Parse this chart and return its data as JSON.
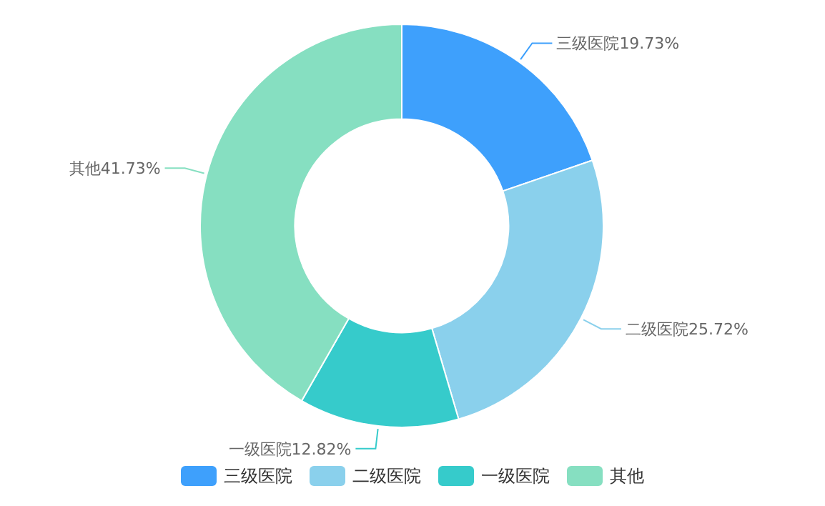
{
  "chart_data": {
    "type": "donut",
    "categories": [
      "三级医院",
      "二级医院",
      "一级医院",
      "其他"
    ],
    "values": [
      19.73,
      25.72,
      12.82,
      41.73
    ],
    "value_labels": [
      "19.73%",
      "25.72%",
      "12.82%",
      "41.73%"
    ],
    "colors": [
      "#3ea0fc",
      "#8ad0ec",
      "#36cbcb",
      "#86dfc1"
    ],
    "legend": "bottom"
  }
}
